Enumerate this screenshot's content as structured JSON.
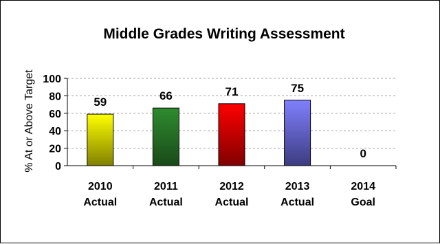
{
  "chart_data": {
    "type": "bar",
    "title": "Middle Grades Writing Assessment",
    "ylabel": "% At or Above Target",
    "xlabel": "",
    "categories": [
      [
        "2010",
        "Actual"
      ],
      [
        "2011",
        "Actual"
      ],
      [
        "2012",
        "Actual"
      ],
      [
        "2013",
        "Actual"
      ],
      [
        "2014",
        "Goal"
      ]
    ],
    "values": [
      59,
      66,
      71,
      75,
      0
    ],
    "data_labels": [
      "59",
      "66",
      "71",
      "75",
      "0"
    ],
    "ylim": [
      0,
      100
    ],
    "yticks": [
      0,
      20,
      40,
      60,
      80,
      100
    ],
    "grid": "horizontal-dashed",
    "legend": "none",
    "bar_colors": [
      {
        "light": "#ffff00",
        "dark": "#808000"
      },
      {
        "light": "#2e8b2e",
        "dark": "#1a4a1a"
      },
      {
        "light": "#ff0000",
        "dark": "#800000"
      },
      {
        "light": "#8080ff",
        "dark": "#3c3c80"
      },
      {
        "light": "#ffffff",
        "dark": "#ffffff"
      }
    ]
  }
}
